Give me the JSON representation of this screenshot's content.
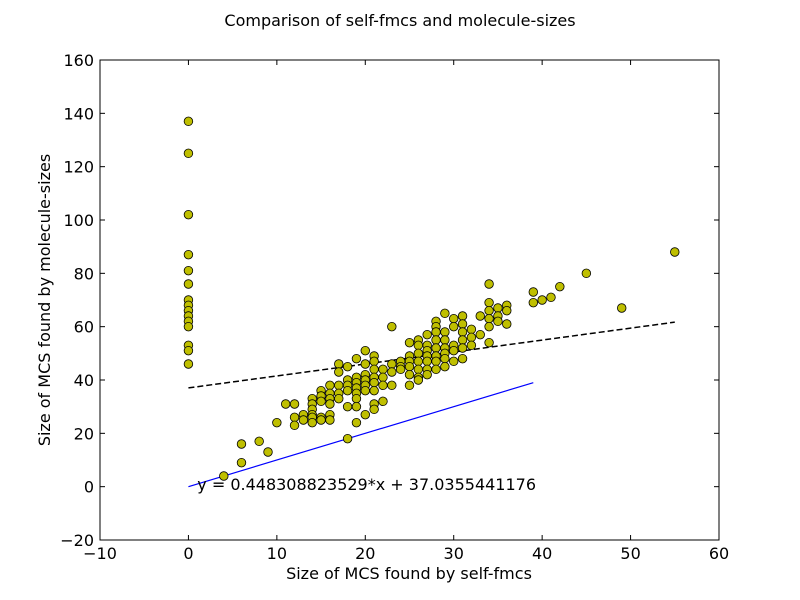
{
  "chart_data": {
    "type": "scatter",
    "title": "Comparison of self-fmcs and molecule-sizes",
    "xlabel": "Size of MCS found by self-fmcs",
    "ylabel": "Size of MCS found by molecule-sizes",
    "xlim": [
      -10,
      60
    ],
    "ylim": [
      -20,
      160
    ],
    "xticks": [
      -10,
      0,
      10,
      20,
      30,
      40,
      50,
      60
    ],
    "yticks": [
      -20,
      0,
      20,
      40,
      60,
      80,
      100,
      120,
      140,
      160
    ],
    "xtick_labels": [
      "−10",
      "0",
      "10",
      "20",
      "30",
      "40",
      "50",
      "60"
    ],
    "ytick_labels": [
      "−20",
      "0",
      "20",
      "40",
      "60",
      "80",
      "100",
      "120",
      "140",
      "160"
    ],
    "grid": false,
    "legend": "none",
    "point_color": "#bfbf00",
    "point_edge_color": "#000000",
    "points": [
      [
        0,
        137
      ],
      [
        0,
        125
      ],
      [
        0,
        102
      ],
      [
        0,
        87
      ],
      [
        0,
        81
      ],
      [
        0,
        76
      ],
      [
        0,
        70
      ],
      [
        0,
        68
      ],
      [
        0,
        66
      ],
      [
        0,
        64
      ],
      [
        0,
        62
      ],
      [
        0,
        60
      ],
      [
        0,
        53
      ],
      [
        0,
        51
      ],
      [
        0,
        46
      ],
      [
        4,
        4
      ],
      [
        6,
        16
      ],
      [
        6,
        9
      ],
      [
        8,
        17
      ],
      [
        9,
        13
      ],
      [
        10,
        24
      ],
      [
        11,
        31
      ],
      [
        12,
        31
      ],
      [
        12,
        26
      ],
      [
        12,
        23
      ],
      [
        13,
        27
      ],
      [
        13,
        25
      ],
      [
        14,
        33
      ],
      [
        14,
        31
      ],
      [
        14,
        29
      ],
      [
        14,
        27
      ],
      [
        14,
        26
      ],
      [
        14,
        24
      ],
      [
        15,
        36
      ],
      [
        15,
        34
      ],
      [
        15,
        32
      ],
      [
        15,
        26
      ],
      [
        15,
        25
      ],
      [
        16,
        38
      ],
      [
        16,
        35
      ],
      [
        16,
        33
      ],
      [
        16,
        31
      ],
      [
        16,
        27
      ],
      [
        16,
        25
      ],
      [
        17,
        46
      ],
      [
        17,
        43
      ],
      [
        17,
        38
      ],
      [
        17,
        35
      ],
      [
        17,
        33
      ],
      [
        18,
        45
      ],
      [
        18,
        40
      ],
      [
        18,
        38
      ],
      [
        18,
        36
      ],
      [
        18,
        30
      ],
      [
        18,
        18
      ],
      [
        19,
        48
      ],
      [
        19,
        41
      ],
      [
        19,
        39
      ],
      [
        19,
        37
      ],
      [
        19,
        35
      ],
      [
        19,
        33
      ],
      [
        19,
        30
      ],
      [
        19,
        24
      ],
      [
        20,
        51
      ],
      [
        20,
        46
      ],
      [
        20,
        42
      ],
      [
        20,
        40
      ],
      [
        20,
        38
      ],
      [
        20,
        36
      ],
      [
        20,
        27
      ],
      [
        21,
        49
      ],
      [
        21,
        47
      ],
      [
        21,
        44
      ],
      [
        21,
        41
      ],
      [
        21,
        39
      ],
      [
        21,
        36
      ],
      [
        21,
        31
      ],
      [
        21,
        29
      ],
      [
        22,
        44
      ],
      [
        22,
        41
      ],
      [
        22,
        38
      ],
      [
        22,
        32
      ],
      [
        23,
        60
      ],
      [
        23,
        46
      ],
      [
        23,
        43
      ],
      [
        23,
        38
      ],
      [
        24,
        47
      ],
      [
        24,
        45
      ],
      [
        24,
        44
      ],
      [
        25,
        54
      ],
      [
        25,
        49
      ],
      [
        25,
        47
      ],
      [
        25,
        45
      ],
      [
        25,
        42
      ],
      [
        25,
        38
      ],
      [
        26,
        55
      ],
      [
        26,
        53
      ],
      [
        26,
        50
      ],
      [
        26,
        47
      ],
      [
        26,
        44
      ],
      [
        26,
        41
      ],
      [
        26,
        40
      ],
      [
        27,
        57
      ],
      [
        27,
        53
      ],
      [
        27,
        51
      ],
      [
        27,
        49
      ],
      [
        27,
        47
      ],
      [
        27,
        44
      ],
      [
        27,
        42
      ],
      [
        28,
        62
      ],
      [
        28,
        60
      ],
      [
        28,
        58
      ],
      [
        28,
        55
      ],
      [
        28,
        52
      ],
      [
        28,
        49
      ],
      [
        28,
        47
      ],
      [
        28,
        44
      ],
      [
        29,
        65
      ],
      [
        29,
        58
      ],
      [
        29,
        55
      ],
      [
        29,
        52
      ],
      [
        29,
        50
      ],
      [
        29,
        48
      ],
      [
        29,
        45
      ],
      [
        30,
        63
      ],
      [
        30,
        60
      ],
      [
        30,
        53
      ],
      [
        30,
        51
      ],
      [
        30,
        47
      ],
      [
        31,
        64
      ],
      [
        31,
        61
      ],
      [
        31,
        58
      ],
      [
        31,
        55
      ],
      [
        31,
        52
      ],
      [
        31,
        48
      ],
      [
        32,
        59
      ],
      [
        32,
        56
      ],
      [
        32,
        53
      ],
      [
        33,
        64
      ],
      [
        33,
        57
      ],
      [
        34,
        76
      ],
      [
        34,
        69
      ],
      [
        34,
        66
      ],
      [
        34,
        63
      ],
      [
        34,
        60
      ],
      [
        34,
        54
      ],
      [
        35,
        67
      ],
      [
        35,
        64
      ],
      [
        35,
        62
      ],
      [
        36,
        68
      ],
      [
        36,
        66
      ],
      [
        36,
        61
      ],
      [
        39,
        73
      ],
      [
        39,
        69
      ],
      [
        40,
        70
      ],
      [
        41,
        71
      ],
      [
        42,
        75
      ],
      [
        45,
        80
      ],
      [
        49,
        67
      ],
      [
        55,
        88
      ]
    ],
    "fit_line": {
      "slope": 0.448308823529,
      "intercept": 37.0355441176,
      "x_range": [
        0,
        55
      ],
      "style": "dashed",
      "color": "#000000"
    },
    "reference_line": {
      "points": [
        [
          0,
          0
        ],
        [
          39,
          39
        ]
      ],
      "color": "#0000ff"
    },
    "annotation": {
      "text": "y = 0.448308823529*x + 37.0355441176",
      "x": 1,
      "y": 1
    }
  }
}
